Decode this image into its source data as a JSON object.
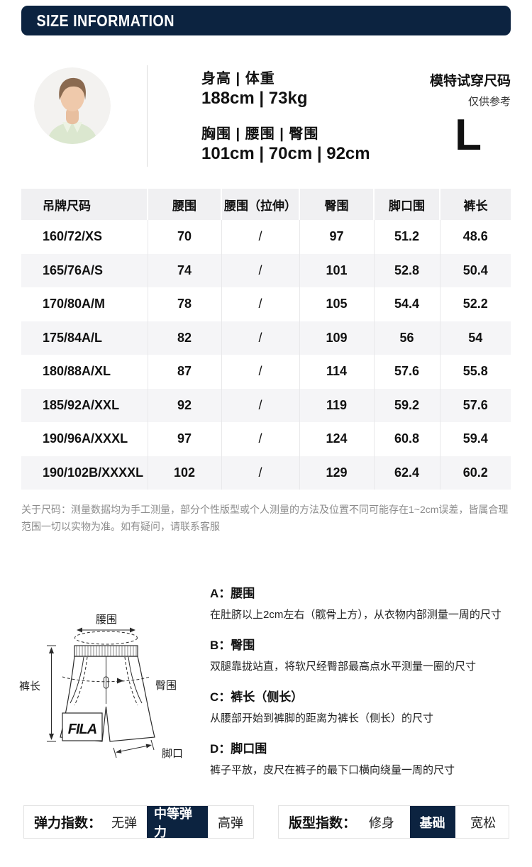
{
  "header": {
    "title": "SIZE INFORMATION"
  },
  "model": {
    "group1_label": "身高 | 体重",
    "group1_value": "188cm | 73kg",
    "group2_label": "胸围 | 腰围 | 臀围",
    "group2_value": "101cm | 70cm | 92cm",
    "tryon_title": "模特试穿尺码",
    "tryon_sub": "仅供参考",
    "tryon_size": "L"
  },
  "size_table": {
    "headers": [
      "吊牌尺码",
      "腰围",
      "腰围（拉伸）",
      "臀围",
      "脚口围",
      "裤长"
    ],
    "rows": [
      [
        "160/72/XS",
        "70",
        "/",
        "97",
        "51.2",
        "48.6"
      ],
      [
        "165/76A/S",
        "74",
        "/",
        "101",
        "52.8",
        "50.4"
      ],
      [
        "170/80A/M",
        "78",
        "/",
        "105",
        "54.4",
        "52.2"
      ],
      [
        "175/84A/L",
        "82",
        "/",
        "109",
        "56",
        "54"
      ],
      [
        "180/88A/XL",
        "87",
        "/",
        "114",
        "57.6",
        "55.8"
      ],
      [
        "185/92A/XXL",
        "92",
        "/",
        "119",
        "59.2",
        "57.6"
      ],
      [
        "190/96A/XXXL",
        "97",
        "/",
        "124",
        "60.8",
        "59.4"
      ],
      [
        "190/102B/XXXXL",
        "102",
        "/",
        "129",
        "62.4",
        "60.2"
      ]
    ]
  },
  "note": "关于尺码：测量数据均为手工测量，部分个性版型或个人测量的方法及位置不同可能存在1~2cm误差，皆属合理范围一切以实物为准。如有疑问，请联系客服",
  "diagram": {
    "labels": {
      "waist": "腰围",
      "length": "裤长",
      "hip": "臀围",
      "hem": "脚口"
    },
    "brand": "FILA"
  },
  "definitions": [
    {
      "title": "A：腰围",
      "desc": "在肚脐以上2cm左右（髋骨上方），从衣物内部测量一周的尺寸"
    },
    {
      "title": "B：臀围",
      "desc": "双腿靠拢站直，将软尺经臀部最高点水平测量一圈的尺寸"
    },
    {
      "title": "C：裤长（侧长）",
      "desc": "从腰部开始到裤脚的距离为裤长（侧长）的尺寸"
    },
    {
      "title": "D：脚口围",
      "desc": "裤子平放，皮尺在裤子的最下口横向绕量一周的尺寸"
    }
  ],
  "indices": {
    "elastic": {
      "label": "弹力指数：",
      "options": [
        "无弹",
        "中等弹力",
        "高弹"
      ],
      "selected": 1
    },
    "fit": {
      "label": "版型指数：",
      "options": [
        "修身",
        "基础",
        "宽松"
      ],
      "selected": 1
    }
  },
  "colors": {
    "navy": "#0c2340",
    "table_header_bg": "#f0f0f2",
    "row_alt_bg": "#f5f5f7",
    "note_gray": "#8c8c8c"
  }
}
